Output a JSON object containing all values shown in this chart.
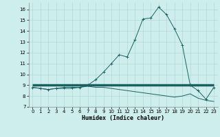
{
  "xlabel": "Humidex (Indice chaleur)",
  "ylabel": "",
  "bg_color": "#ceeeed",
  "grid_color": "#b0d8d8",
  "line_color": "#1a6060",
  "xlim": [
    -0.5,
    23.5
  ],
  "ylim": [
    7,
    16.6
  ],
  "yticks": [
    7,
    8,
    9,
    10,
    11,
    12,
    13,
    14,
    15,
    16
  ],
  "xticks": [
    0,
    1,
    2,
    3,
    4,
    5,
    6,
    7,
    8,
    9,
    10,
    11,
    12,
    13,
    14,
    15,
    16,
    17,
    18,
    19,
    20,
    21,
    22,
    23
  ],
  "humidex": [
    8.8,
    8.7,
    8.6,
    8.7,
    8.8,
    8.8,
    8.8,
    9.0,
    9.5,
    10.2,
    11.0,
    11.8,
    11.6,
    13.2,
    15.1,
    15.2,
    16.2,
    15.5,
    14.2,
    12.7,
    9.0,
    8.5,
    7.7,
    8.8
  ],
  "min_line": [
    8.8,
    8.7,
    8.6,
    8.7,
    8.7,
    8.7,
    8.8,
    8.9,
    8.8,
    8.8,
    8.7,
    8.6,
    8.5,
    8.4,
    8.3,
    8.2,
    8.1,
    8.0,
    7.9,
    8.0,
    8.2,
    7.8,
    7.6,
    7.5
  ],
  "flat_line_y": 9.0,
  "flat_line_x_start": 0,
  "flat_line_x_end": 23
}
